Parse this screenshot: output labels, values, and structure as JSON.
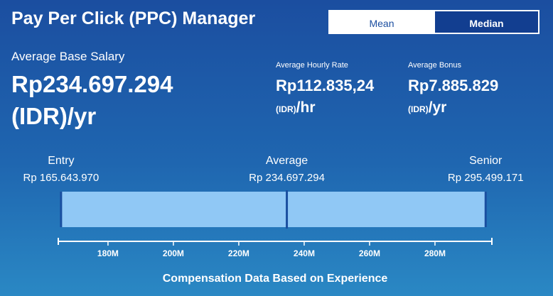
{
  "header": {
    "title": "Pay Per Click (PPC) Manager",
    "toggle": [
      "Mean",
      "Median"
    ]
  },
  "stats": {
    "base": {
      "label": "Average Base Salary",
      "amount": "Rp234.697.294",
      "unit": "(IDR)/yr"
    },
    "hourly": {
      "label": "Average Hourly Rate",
      "amount": "Rp112.835,24",
      "currency": "(IDR)",
      "period": "/hr"
    },
    "bonus": {
      "label": "Average Bonus",
      "amount": "Rp7.885.829",
      "currency": "(IDR)",
      "period": "/yr"
    }
  },
  "chart_data": {
    "type": "range",
    "title": "Compensation Data Based on Experience",
    "categories": [
      "Entry",
      "Average",
      "Senior"
    ],
    "values": [
      165643970,
      234697294,
      295499171
    ],
    "value_labels": [
      "Rp 165.643.970",
      "Rp 234.697.294",
      "Rp 295.499.171"
    ],
    "color": "#90c8f5",
    "marker_color": "#1a4fa0",
    "xlim": [
      164800000,
      297400000
    ],
    "xticks": [
      {
        "value": 180000000,
        "label": "180M"
      },
      {
        "value": 200000000,
        "label": "200M"
      },
      {
        "value": 220000000,
        "label": "220M"
      },
      {
        "value": 240000000,
        "label": "240M"
      },
      {
        "value": 260000000,
        "label": "260M"
      },
      {
        "value": 280000000,
        "label": "280M"
      }
    ]
  }
}
